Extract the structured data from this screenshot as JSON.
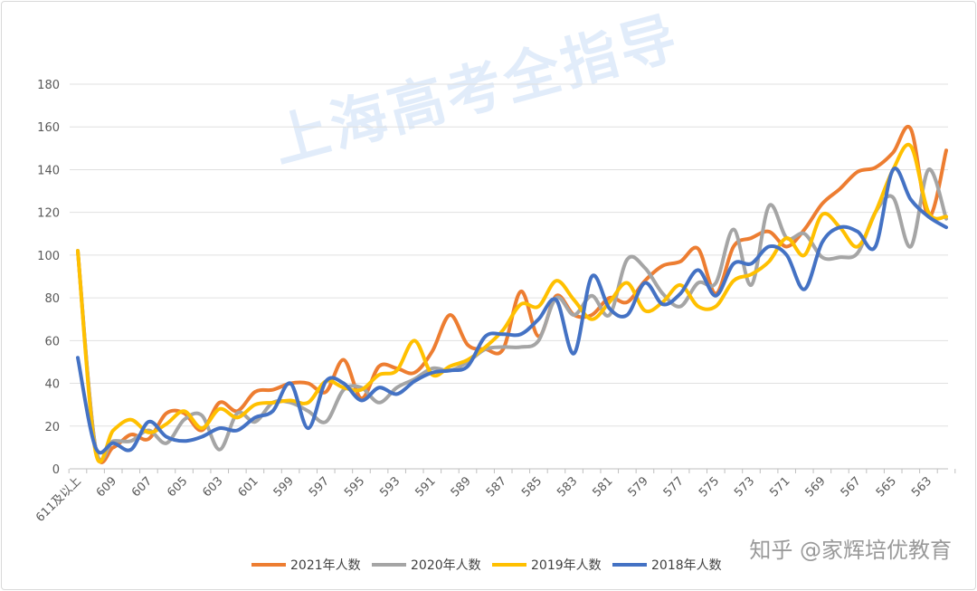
{
  "watermark": "上海高考全指导",
  "credit": "知乎 @家辉培优教育",
  "chart_data": {
    "type": "line",
    "title": "",
    "xlabel": "",
    "ylabel": "",
    "ylim": [
      0,
      180
    ],
    "yticks": [
      0,
      20,
      40,
      60,
      80,
      100,
      120,
      140,
      160,
      180
    ],
    "grid": true,
    "legend_position": "bottom",
    "categories": [
      "611及以上",
      "610",
      "609",
      "608",
      "607",
      "606",
      "605",
      "604",
      "603",
      "602",
      "601",
      "600",
      "599",
      "598",
      "597",
      "596",
      "595",
      "594",
      "593",
      "592",
      "591",
      "590",
      "589",
      "588",
      "587",
      "586",
      "585",
      "584",
      "583",
      "582",
      "581",
      "580",
      "579",
      "578",
      "577",
      "576",
      "575",
      "574",
      "573",
      "572",
      "571",
      "570",
      "569",
      "568",
      "567",
      "566",
      "565",
      "564",
      "563",
      "562"
    ],
    "shown_tick_labels": [
      "611及以上",
      "609",
      "607",
      "605",
      "603",
      "601",
      "599",
      "597",
      "595",
      "593",
      "591",
      "589",
      "587",
      "585",
      "583",
      "581",
      "579",
      "577",
      "575",
      "573",
      "571",
      "569",
      "567",
      "565",
      "563"
    ],
    "series": [
      {
        "name": "2021年人数",
        "color": "#ED7D31",
        "values": [
          102,
          10,
          10,
          16,
          14,
          26,
          26,
          18,
          31,
          27,
          36,
          37,
          40,
          40,
          36,
          51,
          33,
          48,
          47,
          45,
          55,
          72,
          58,
          56,
          56,
          83,
          62,
          81,
          72,
          72,
          80,
          78,
          88,
          95,
          97,
          103,
          82,
          104,
          108,
          111,
          104,
          112,
          124,
          131,
          139,
          141,
          148,
          159,
          118,
          149
        ]
      },
      {
        "name": "2020年人数",
        "color": "#A5A5A5",
        "values": [
          102,
          10,
          13,
          13,
          18,
          12,
          23,
          25,
          9,
          26,
          22,
          31,
          31,
          27,
          22,
          37,
          38,
          31,
          38,
          42,
          47,
          46,
          50,
          56,
          57,
          57,
          60,
          80,
          72,
          81,
          72,
          98,
          94,
          82,
          76,
          87,
          87,
          112,
          86,
          123,
          108,
          110,
          99,
          99,
          101,
          120,
          127,
          104,
          140,
          117
        ]
      },
      {
        "name": "2019年人数",
        "color": "#FFC000",
        "values": [
          102,
          8,
          18,
          23,
          17,
          21,
          27,
          19,
          28,
          24,
          30,
          31,
          32,
          31,
          41,
          38,
          37,
          44,
          46,
          60,
          44,
          48,
          51,
          57,
          65,
          77,
          76,
          88,
          79,
          70,
          78,
          87,
          74,
          78,
          86,
          76,
          76,
          88,
          91,
          97,
          108,
          100,
          119,
          113,
          104,
          120,
          140,
          151,
          120,
          118
        ]
      },
      {
        "name": "2018年人数",
        "color": "#4472C4",
        "values": [
          52,
          10,
          12,
          9,
          22,
          15,
          13,
          15,
          19,
          18,
          24,
          27,
          40,
          19,
          41,
          40,
          32,
          38,
          35,
          41,
          45,
          46,
          48,
          62,
          63,
          63,
          70,
          79,
          54,
          90,
          75,
          72,
          87,
          77,
          82,
          93,
          81,
          96,
          96,
          104,
          100,
          84,
          106,
          113,
          111,
          104,
          140,
          126,
          118,
          113
        ]
      }
    ]
  }
}
